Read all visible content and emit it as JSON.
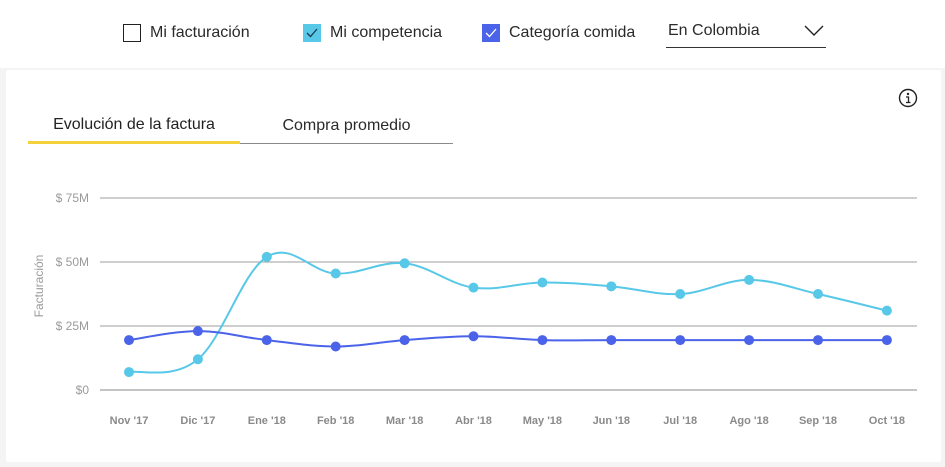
{
  "filters": {
    "mi_facturacion": {
      "label": "Mi facturación",
      "checked": false
    },
    "mi_competencia": {
      "label": "Mi competencia",
      "checked": true,
      "color": "#58c8e8"
    },
    "categoria_comida": {
      "label": "Categoría comida",
      "checked": true,
      "color": "#4a63e8"
    },
    "location_select": {
      "value": "En Colombia",
      "icon": "chevron-down-icon"
    }
  },
  "card": {
    "info_icon": "info-icon",
    "tabs": [
      {
        "label": "Evolución de la factura",
        "active": true
      },
      {
        "label": "Compra promedio",
        "active": false
      }
    ]
  },
  "chart_data": {
    "type": "line",
    "ylabel": "Facturación",
    "yticks": [
      "$0",
      "$ 25M",
      "$ 50M",
      "$ 75M"
    ],
    "ylim": [
      0,
      75
    ],
    "grid": true,
    "categories": [
      "Nov '17",
      "Dic '17",
      "Ene '18",
      "Feb '18",
      "Mar '18",
      "Abr '18",
      "May '18",
      "Jun '18",
      "Jul '18",
      "Ago '18",
      "Sep '18",
      "Oct '18"
    ],
    "series": [
      {
        "color": "#58c8e8",
        "values": [
          7,
          12,
          52,
          45.5,
          49.5,
          40,
          42,
          40.5,
          37.5,
          43,
          37.5,
          31
        ]
      },
      {
        "color": "#4a63e8",
        "values": [
          19.5,
          23,
          19.5,
          17,
          19.5,
          21,
          19.5,
          19.5,
          19.5,
          19.5,
          19.5,
          19.5
        ]
      }
    ]
  }
}
